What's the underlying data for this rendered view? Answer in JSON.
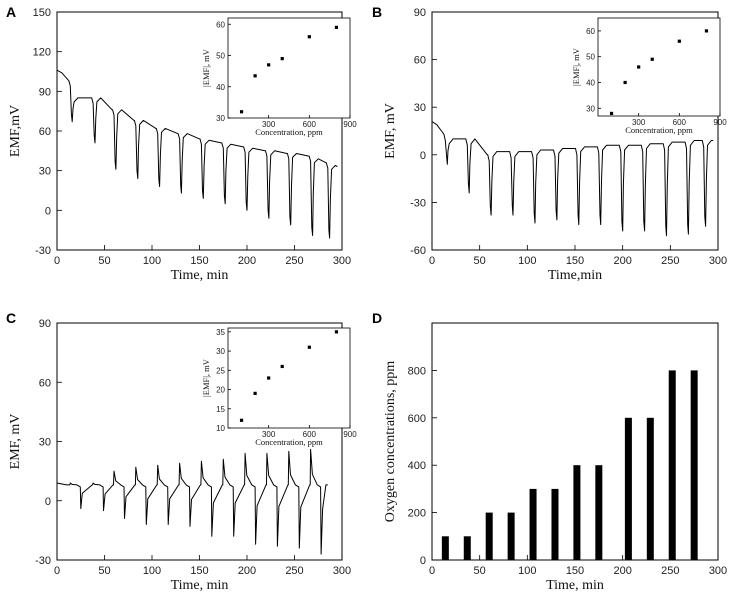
{
  "chart_data": [
    {
      "panel": "A",
      "type": "line",
      "xlabel": "Time, min",
      "ylabel": "EMF,mV",
      "xlim": [
        0,
        300
      ],
      "ylim": [
        -30,
        150
      ],
      "xticks": [
        0,
        50,
        100,
        150,
        200,
        250,
        300
      ],
      "yticks": [
        -30,
        0,
        30,
        60,
        90,
        120,
        150
      ],
      "baseline_start": 106,
      "baseline_end": 85,
      "cycles": [
        {
          "t": 14,
          "top": 85,
          "low": 67,
          "end": 85
        },
        {
          "t": 38,
          "top": 85,
          "low": 51,
          "end": 76
        },
        {
          "t": 60,
          "top": 76,
          "low": 31,
          "end": 68
        },
        {
          "t": 83,
          "top": 68,
          "low": 24,
          "end": 62
        },
        {
          "t": 106,
          "top": 62,
          "low": 18,
          "end": 58
        },
        {
          "t": 129,
          "top": 58,
          "low": 13,
          "end": 54
        },
        {
          "t": 152,
          "top": 53,
          "low": 9,
          "end": 51
        },
        {
          "t": 175,
          "top": 50,
          "low": 5,
          "end": 48
        },
        {
          "t": 198,
          "top": 47,
          "low": 0,
          "end": 45
        },
        {
          "t": 221,
          "top": 45,
          "low": -6,
          "end": 43
        },
        {
          "t": 244,
          "top": 43,
          "low": -11,
          "end": 41
        },
        {
          "t": 267,
          "top": 39,
          "low": -19,
          "end": 36
        },
        {
          "t": 285,
          "top": 34,
          "low": -21,
          "end": 33
        }
      ],
      "inset": {
        "type": "scatter",
        "xlabel": "Concentration, ppm",
        "ylabel": "|EMF|, mV",
        "xlim": [
          0,
          900
        ],
        "ylim": [
          30,
          62
        ],
        "xticks": [
          300,
          600,
          900
        ],
        "yticks": [
          30,
          40,
          50,
          60
        ],
        "x": [
          100,
          200,
          300,
          400,
          600,
          800
        ],
        "y": [
          32,
          43.5,
          47,
          49,
          56,
          59
        ]
      }
    },
    {
      "panel": "B",
      "type": "line",
      "xlabel": "Time,min",
      "ylabel": "EMF, mV",
      "xlim": [
        0,
        300
      ],
      "ylim": [
        -60,
        90
      ],
      "xticks": [
        0,
        50,
        100,
        150,
        200,
        250,
        300
      ],
      "yticks": [
        -60,
        -30,
        0,
        30,
        60,
        90
      ],
      "baseline_start": 21,
      "baseline_end": 10,
      "cycles": [
        {
          "t": 14,
          "top": 10,
          "low": -6,
          "end": 10
        },
        {
          "t": 37,
          "top": 10,
          "low": -24,
          "end": 0
        },
        {
          "t": 60,
          "top": 2,
          "low": -38,
          "end": 2
        },
        {
          "t": 83,
          "top": 2,
          "low": -38,
          "end": 2
        },
        {
          "t": 106,
          "top": 3,
          "low": -43,
          "end": 3
        },
        {
          "t": 129,
          "top": 4,
          "low": -41,
          "end": 4
        },
        {
          "t": 152,
          "top": 5,
          "low": -44,
          "end": 5
        },
        {
          "t": 175,
          "top": 6,
          "low": -44,
          "end": 6
        },
        {
          "t": 198,
          "top": 6,
          "low": -48,
          "end": 6
        },
        {
          "t": 221,
          "top": 7,
          "low": -48,
          "end": 7
        },
        {
          "t": 244,
          "top": 8,
          "low": -51,
          "end": 8
        },
        {
          "t": 267,
          "top": 9,
          "low": -50,
          "end": 9
        },
        {
          "t": 285,
          "top": 9,
          "low": -45,
          "end": 9
        }
      ],
      "inset": {
        "type": "scatter",
        "xlabel": "Concentration, ppm",
        "ylabel": "|EMF|, mV",
        "xlim": [
          0,
          900
        ],
        "ylim": [
          27,
          65
        ],
        "xticks": [
          300,
          600,
          900
        ],
        "yticks": [
          30,
          40,
          50,
          60
        ],
        "x": [
          100,
          200,
          300,
          400,
          600,
          800
        ],
        "y": [
          28,
          40,
          46,
          49,
          56,
          60
        ]
      }
    },
    {
      "panel": "C",
      "type": "line",
      "xlabel": "Time, min",
      "ylabel": "EMF, mV",
      "xlim": [
        0,
        300
      ],
      "ylim": [
        -30,
        90
      ],
      "xticks": [
        0,
        50,
        100,
        150,
        200,
        250,
        300
      ],
      "yticks": [
        -30,
        0,
        30,
        60,
        90
      ],
      "baseline": 8,
      "cycles": [
        {
          "t": 14,
          "up": 9,
          "down": -4
        },
        {
          "t": 38,
          "up": 9,
          "down": -5
        },
        {
          "t": 60,
          "up": 15,
          "down": -9
        },
        {
          "t": 83,
          "up": 17,
          "down": -12
        },
        {
          "t": 106,
          "up": 18,
          "down": -12
        },
        {
          "t": 129,
          "up": 19,
          "down": -13
        },
        {
          "t": 152,
          "up": 20,
          "down": -18
        },
        {
          "t": 175,
          "up": 21,
          "down": -18
        },
        {
          "t": 198,
          "up": 24,
          "down": -22
        },
        {
          "t": 221,
          "up": 24,
          "down": -23
        },
        {
          "t": 244,
          "up": 25,
          "down": -24
        },
        {
          "t": 267,
          "up": 26,
          "down": -27
        }
      ],
      "inset": {
        "type": "scatter",
        "xlabel": "Concentration, ppm",
        "ylabel": "|EMF|, mV",
        "xlim": [
          0,
          900
        ],
        "ylim": [
          10,
          36
        ],
        "xticks": [
          300,
          600,
          900
        ],
        "yticks": [
          10,
          15,
          20,
          25,
          30,
          35
        ],
        "x": [
          100,
          200,
          300,
          400,
          600,
          800
        ],
        "y": [
          12,
          19,
          23,
          26,
          31,
          35
        ]
      }
    },
    {
      "panel": "D",
      "type": "bar",
      "xlabel": "Time, min",
      "ylabel": "Oxygen concentrations, ppm",
      "xlim": [
        0,
        300
      ],
      "ylim": [
        0,
        1000
      ],
      "xticks": [
        0,
        50,
        100,
        150,
        200,
        250,
        300
      ],
      "yticks": [
        0,
        200,
        400,
        600,
        800
      ],
      "x": [
        14,
        37,
        60,
        83,
        106,
        129,
        152,
        175,
        206,
        229,
        252,
        275
      ],
      "values": [
        100,
        100,
        200,
        200,
        300,
        300,
        400,
        400,
        600,
        600,
        800,
        800
      ]
    }
  ]
}
